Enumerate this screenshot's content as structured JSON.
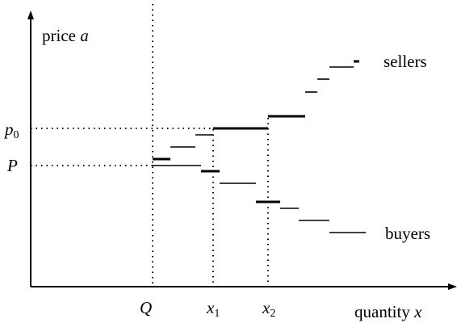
{
  "axes": {
    "y_label": {
      "word": "price",
      "variable": "a"
    },
    "x_label": {
      "word": "quantity",
      "variable": "x"
    }
  },
  "curves": {
    "sellers": "sellers",
    "buyers": "buyers"
  },
  "levels": {
    "p0": {
      "symbol": "p",
      "subscript": "0"
    },
    "P": "P"
  },
  "quantities": {
    "Q": "Q",
    "x1": {
      "symbol": "x",
      "subscript": "1"
    },
    "x2": {
      "symbol": "x",
      "subscript": "2"
    }
  }
}
